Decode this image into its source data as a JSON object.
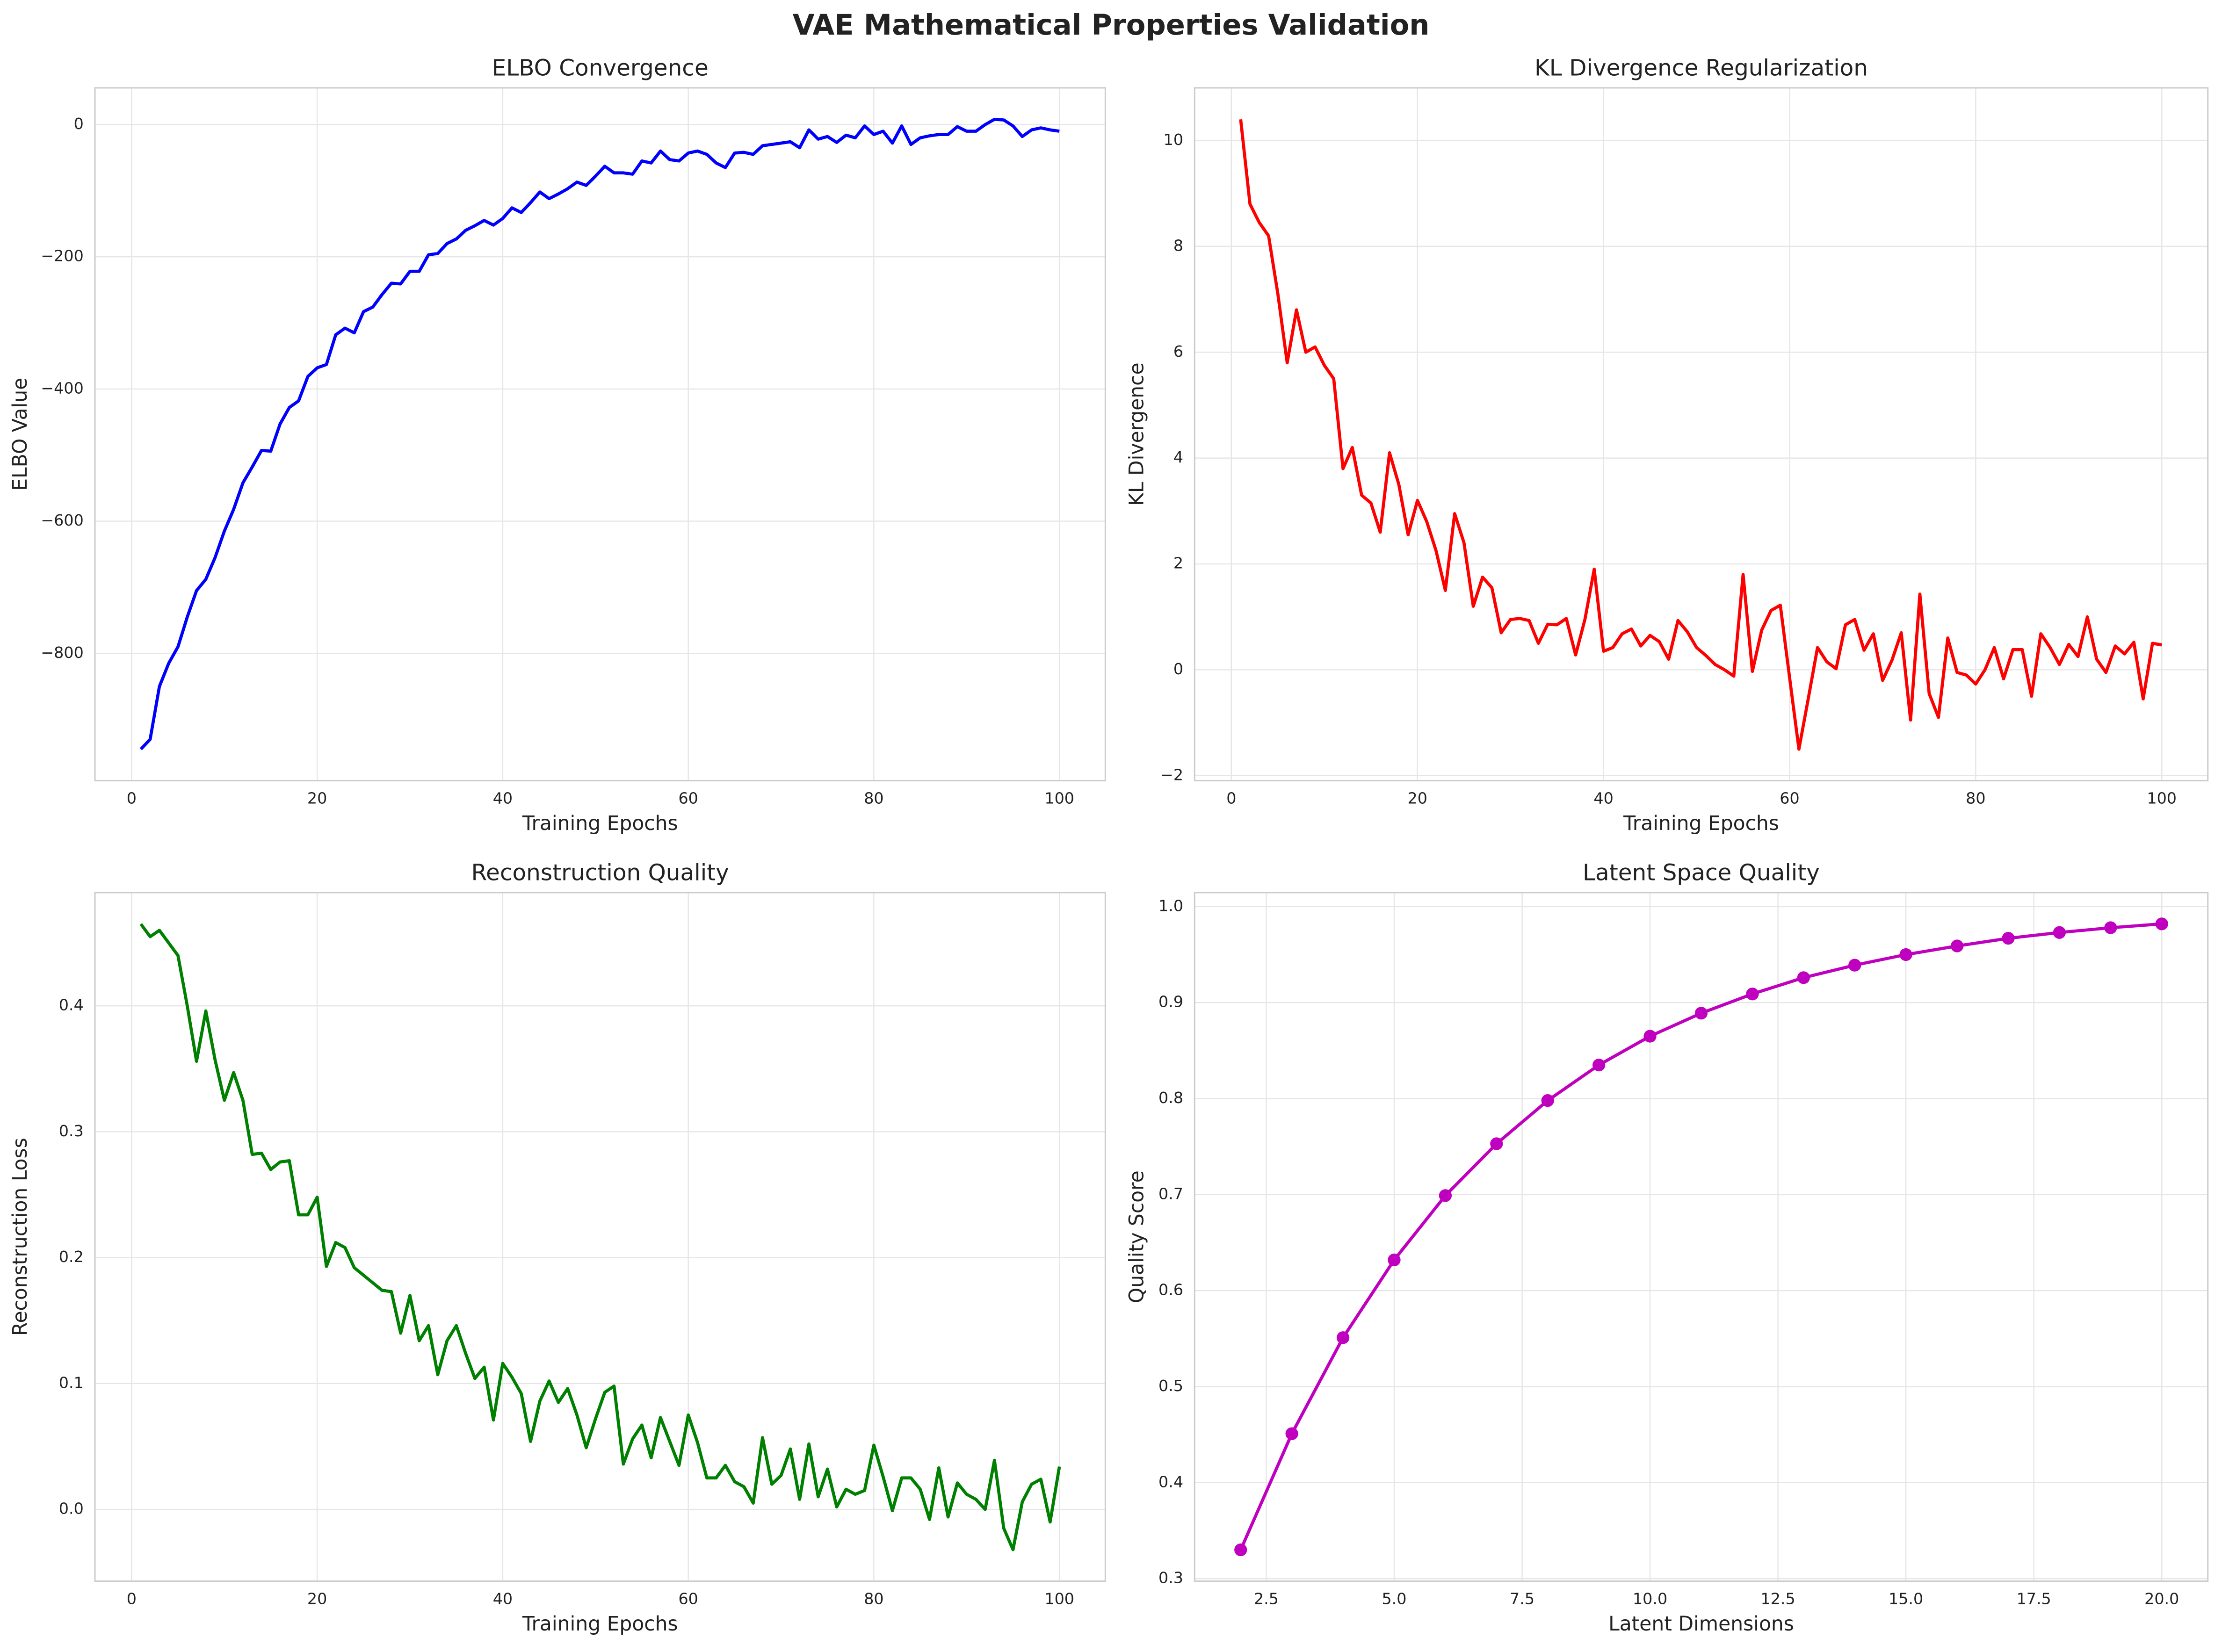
{
  "title": "VAE Mathematical Properties Validation",
  "chart_data": [
    {
      "type": "line",
      "title": "ELBO Convergence",
      "xlabel": "Training Epochs",
      "ylabel": "ELBO Value",
      "grid": true,
      "x": [
        1,
        2,
        3,
        4,
        5,
        6,
        7,
        8,
        9,
        10,
        11,
        12,
        13,
        14,
        15,
        16,
        17,
        18,
        19,
        20,
        21,
        22,
        23,
        24,
        25,
        26,
        27,
        28,
        29,
        30,
        31,
        32,
        33,
        34,
        35,
        36,
        37,
        38,
        39,
        40,
        41,
        42,
        43,
        44,
        45,
        46,
        47,
        48,
        49,
        50,
        51,
        52,
        53,
        54,
        55,
        56,
        57,
        58,
        59,
        60,
        61,
        62,
        63,
        64,
        65,
        66,
        67,
        68,
        69,
        70,
        71,
        72,
        73,
        74,
        75,
        76,
        77,
        78,
        79,
        80,
        81,
        82,
        83,
        84,
        85,
        86,
        87,
        88,
        89,
        90,
        91,
        92,
        93,
        94,
        95,
        96,
        97,
        98,
        99,
        100
      ],
      "series": [
        {
          "name": "ELBO",
          "color": "#0000ff",
          "values": [
            -945,
            -930,
            -850,
            -815,
            -790,
            -745,
            -705,
            -688,
            -655,
            -615,
            -582,
            -542,
            -518,
            -493,
            -494,
            -453,
            -428,
            -418,
            -381,
            -368,
            -363,
            -318,
            -308,
            -315,
            -283,
            -276,
            -257,
            -240,
            -241,
            -222,
            -222,
            -197,
            -195,
            -180,
            -173,
            -160,
            -153,
            -145,
            -152,
            -142,
            -126,
            -133,
            -118,
            -102,
            -112,
            -105,
            -97,
            -87,
            -92,
            -78,
            -63,
            -73,
            -73,
            -75,
            -55,
            -58,
            -40,
            -53,
            -55,
            -43,
            -40,
            -45,
            -58,
            -65,
            -43,
            -42,
            -45,
            -32,
            -30,
            -28,
            -26,
            -35,
            -8,
            -22,
            -18,
            -27,
            -16,
            -20,
            -2,
            -15,
            -10,
            -28,
            -2,
            -30,
            -20,
            -17,
            -15,
            -15,
            -3,
            -10,
            -10,
            0,
            8,
            7,
            -2,
            -18,
            -8,
            -5,
            -8,
            -10
          ]
        }
      ],
      "xlim": [
        -3.95,
        104.95
      ],
      "xticks": [
        0,
        20,
        40,
        60,
        80,
        100
      ],
      "ylim": [
        -992.6,
        55.6
      ],
      "yticks": [
        {
          "value": -800,
          "label": "−800"
        },
        {
          "value": -600,
          "label": "−600"
        },
        {
          "value": -400,
          "label": "−400"
        },
        {
          "value": -200,
          "label": "−200"
        },
        0
      ]
    },
    {
      "type": "line",
      "title": "KL Divergence Regularization",
      "xlabel": "Training Epochs",
      "ylabel": "KL Divergence",
      "grid": true,
      "x": [
        1,
        2,
        3,
        4,
        5,
        6,
        7,
        8,
        9,
        10,
        11,
        12,
        13,
        14,
        15,
        16,
        17,
        18,
        19,
        20,
        21,
        22,
        23,
        24,
        25,
        26,
        27,
        28,
        29,
        30,
        31,
        32,
        33,
        34,
        35,
        36,
        37,
        38,
        39,
        40,
        41,
        42,
        43,
        44,
        45,
        46,
        47,
        48,
        49,
        50,
        51,
        52,
        53,
        54,
        55,
        56,
        57,
        58,
        59,
        60,
        61,
        62,
        63,
        64,
        65,
        66,
        67,
        68,
        69,
        70,
        71,
        72,
        73,
        74,
        75,
        76,
        77,
        78,
        79,
        80,
        81,
        82,
        83,
        84,
        85,
        86,
        87,
        88,
        89,
        90,
        91,
        92,
        93,
        94,
        95,
        96,
        97,
        98,
        99,
        100
      ],
      "series": [
        {
          "name": "KL",
          "color": "#ff0000",
          "values": [
            10.4,
            8.8,
            8.45,
            8.2,
            7.1,
            5.8,
            6.8,
            6.0,
            6.1,
            5.75,
            5.5,
            3.8,
            4.2,
            3.3,
            3.15,
            2.6,
            4.1,
            3.5,
            2.55,
            3.2,
            2.8,
            2.25,
            1.5,
            2.95,
            2.4,
            1.2,
            1.75,
            1.55,
            0.7,
            0.95,
            0.97,
            0.93,
            0.5,
            0.86,
            0.85,
            0.97,
            0.28,
            0.95,
            1.9,
            0.35,
            0.42,
            0.68,
            0.77,
            0.45,
            0.65,
            0.53,
            0.2,
            0.93,
            0.72,
            0.42,
            0.27,
            0.1,
            0.0,
            -0.12,
            1.8,
            -0.03,
            0.75,
            1.12,
            1.22,
            -0.15,
            -1.5,
            -0.55,
            0.42,
            0.15,
            0.02,
            0.85,
            0.95,
            0.37,
            0.68,
            -0.2,
            0.18,
            0.7,
            -0.95,
            1.43,
            -0.45,
            -0.9,
            0.6,
            -0.05,
            -0.1,
            -0.27,
            0.0,
            0.42,
            -0.17,
            0.38,
            0.38,
            -0.5,
            0.68,
            0.42,
            0.1,
            0.48,
            0.25,
            1.0,
            0.2,
            -0.05,
            0.45,
            0.3,
            0.52,
            -0.55,
            0.5,
            0.47
          ]
        }
      ],
      "xlim": [
        -3.95,
        104.95
      ],
      "xticks": [
        0,
        20,
        40,
        60,
        80,
        100
      ],
      "ylim": [
        -2.095,
        10.995
      ],
      "yticks": [
        {
          "value": -2,
          "label": "−2"
        },
        0,
        2,
        4,
        6,
        8,
        10
      ]
    },
    {
      "type": "line",
      "title": "Reconstruction Quality",
      "xlabel": "Training Epochs",
      "ylabel": "Reconstruction Loss",
      "grid": true,
      "x": [
        1,
        2,
        3,
        4,
        5,
        6,
        7,
        8,
        9,
        10,
        11,
        12,
        13,
        14,
        15,
        16,
        17,
        18,
        19,
        20,
        21,
        22,
        23,
        24,
        25,
        26,
        27,
        28,
        29,
        30,
        31,
        32,
        33,
        34,
        35,
        36,
        37,
        38,
        39,
        40,
        41,
        42,
        43,
        44,
        45,
        46,
        47,
        48,
        49,
        50,
        51,
        52,
        53,
        54,
        55,
        56,
        57,
        58,
        59,
        60,
        61,
        62,
        63,
        64,
        65,
        66,
        67,
        68,
        69,
        70,
        71,
        72,
        73,
        74,
        75,
        76,
        77,
        78,
        79,
        80,
        81,
        82,
        83,
        84,
        85,
        86,
        87,
        88,
        89,
        90,
        91,
        92,
        93,
        94,
        95,
        96,
        97,
        98,
        99,
        100
      ],
      "series": [
        {
          "name": "Reconstruction",
          "color": "#008000",
          "values": [
            0.465,
            0.455,
            0.46,
            0.45,
            0.44,
            0.4,
            0.356,
            0.396,
            0.357,
            0.325,
            0.347,
            0.325,
            0.282,
            0.283,
            0.27,
            0.276,
            0.277,
            0.234,
            0.234,
            0.248,
            0.193,
            0.212,
            0.208,
            0.192,
            0.186,
            0.18,
            0.174,
            0.173,
            0.14,
            0.17,
            0.134,
            0.146,
            0.107,
            0.134,
            0.146,
            0.124,
            0.104,
            0.113,
            0.071,
            0.116,
            0.105,
            0.092,
            0.054,
            0.086,
            0.102,
            0.085,
            0.096,
            0.075,
            0.049,
            0.072,
            0.093,
            0.098,
            0.036,
            0.056,
            0.067,
            0.041,
            0.073,
            0.054,
            0.035,
            0.075,
            0.053,
            0.025,
            0.025,
            0.035,
            0.022,
            0.018,
            0.005,
            0.057,
            0.02,
            0.027,
            0.048,
            0.008,
            0.052,
            0.01,
            0.032,
            0.002,
            0.016,
            0.012,
            0.015,
            0.051,
            0.026,
            -0.001,
            0.025,
            0.025,
            0.016,
            -0.008,
            0.033,
            -0.006,
            0.021,
            0.012,
            0.008,
            0.0,
            0.039,
            -0.015,
            -0.032,
            0.006,
            0.02,
            0.024,
            -0.01,
            0.034
          ]
        }
      ],
      "xlim": [
        -3.95,
        104.95
      ],
      "xticks": [
        0,
        20,
        40,
        60,
        80,
        100
      ],
      "ylim": [
        -0.057,
        0.49
      ],
      "yticks": [
        {
          "value": 0,
          "label": "0.0"
        },
        0.1,
        0.2,
        0.3,
        0.4
      ]
    },
    {
      "type": "line",
      "title": "Latent Space Quality",
      "xlabel": "Latent Dimensions",
      "ylabel": "Quality Score",
      "grid": true,
      "markers": true,
      "x": [
        2,
        3,
        4,
        5,
        6,
        7,
        8,
        9,
        10,
        11,
        12,
        13,
        14,
        15,
        16,
        17,
        18,
        19,
        20
      ],
      "series": [
        {
          "name": "Quality",
          "color": "#bf00bf",
          "values": [
            0.33,
            0.451,
            0.551,
            0.632,
            0.699,
            0.753,
            0.798,
            0.835,
            0.865,
            0.889,
            0.909,
            0.926,
            0.939,
            0.95,
            0.959,
            0.967,
            0.973,
            0.978,
            0.982
          ]
        }
      ],
      "xlim": [
        1.1,
        20.9
      ],
      "xticks": [
        2.5,
        {
          "value": 5,
          "label": "5.0"
        },
        7.5,
        {
          "value": 10,
          "label": "10.0"
        },
        12.5,
        {
          "value": 15,
          "label": "15.0"
        },
        17.5,
        {
          "value": 20,
          "label": "20.0"
        }
      ],
      "ylim": [
        0.2974,
        1.0146
      ],
      "yticks": [
        0.3,
        0.4,
        0.5,
        0.6,
        0.7,
        0.8,
        0.9,
        {
          "value": 1,
          "label": "1.0"
        }
      ]
    }
  ]
}
